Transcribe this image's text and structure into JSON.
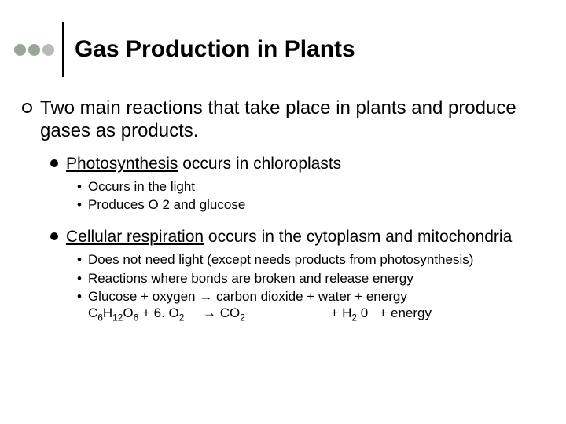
{
  "title": "Gas Production in Plants",
  "circles": [
    "#99a597",
    "#99a597",
    "#b7bdb6"
  ],
  "b1": "Two main reactions that take place in plants and produce gases as products.",
  "p1": {
    "heading_underlined": "Photosynthesis",
    "heading_rest": " occurs in chloroplasts",
    "sub": [
      "Occurs in the light",
      "Produces O 2 and glucose"
    ]
  },
  "p2": {
    "heading_underlined": "Cellular respiration",
    "heading_rest": " occurs in the cytoplasm and mitochondria",
    "sub": [
      "Does not need light (except needs products from photosynthesis)",
      "Reactions where bonds are broken and release energy"
    ],
    "eq_text": "Glucose + oxygen → carbon dioxide + water + energy",
    "eq_formula_parts": {
      "c": "C",
      "s6a": "6",
      "h": "H",
      "s12": "12",
      "o": "O",
      "s6b": "6",
      "plus1": " + 6. O",
      "s2a": "2",
      "arrow": "     → CO",
      "s2b": "2",
      "mid": "                       + H",
      "s2c": "2",
      "zero": " 0",
      "tail": "   + energy"
    }
  }
}
